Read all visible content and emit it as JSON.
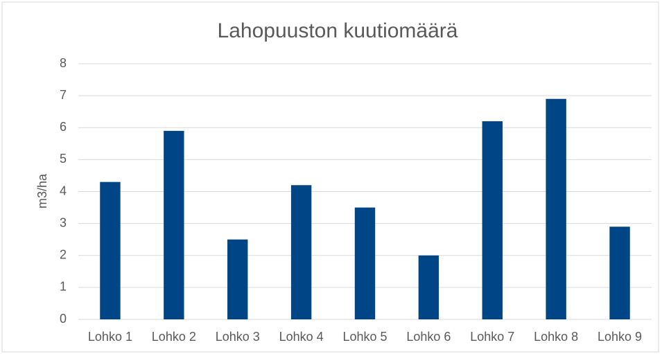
{
  "chart_data": {
    "type": "bar",
    "title": "Lahopuuston kuutiomäärä",
    "y_label": "m3/ha",
    "categories": [
      "Lohko 1",
      "Lohko 2",
      "Lohko 3",
      "Lohko 4",
      "Lohko 5",
      "Lohko 6",
      "Lohko 7",
      "Lohko 8",
      "Lohko 9"
    ],
    "values": [
      4.3,
      5.9,
      2.5,
      4.2,
      3.5,
      2.0,
      6.2,
      6.9,
      2.9
    ],
    "color": "#004586",
    "ylim": [
      0,
      8
    ],
    "yticks": [
      0,
      1,
      2,
      3,
      4,
      5,
      6,
      7,
      8
    ],
    "grid": true
  }
}
